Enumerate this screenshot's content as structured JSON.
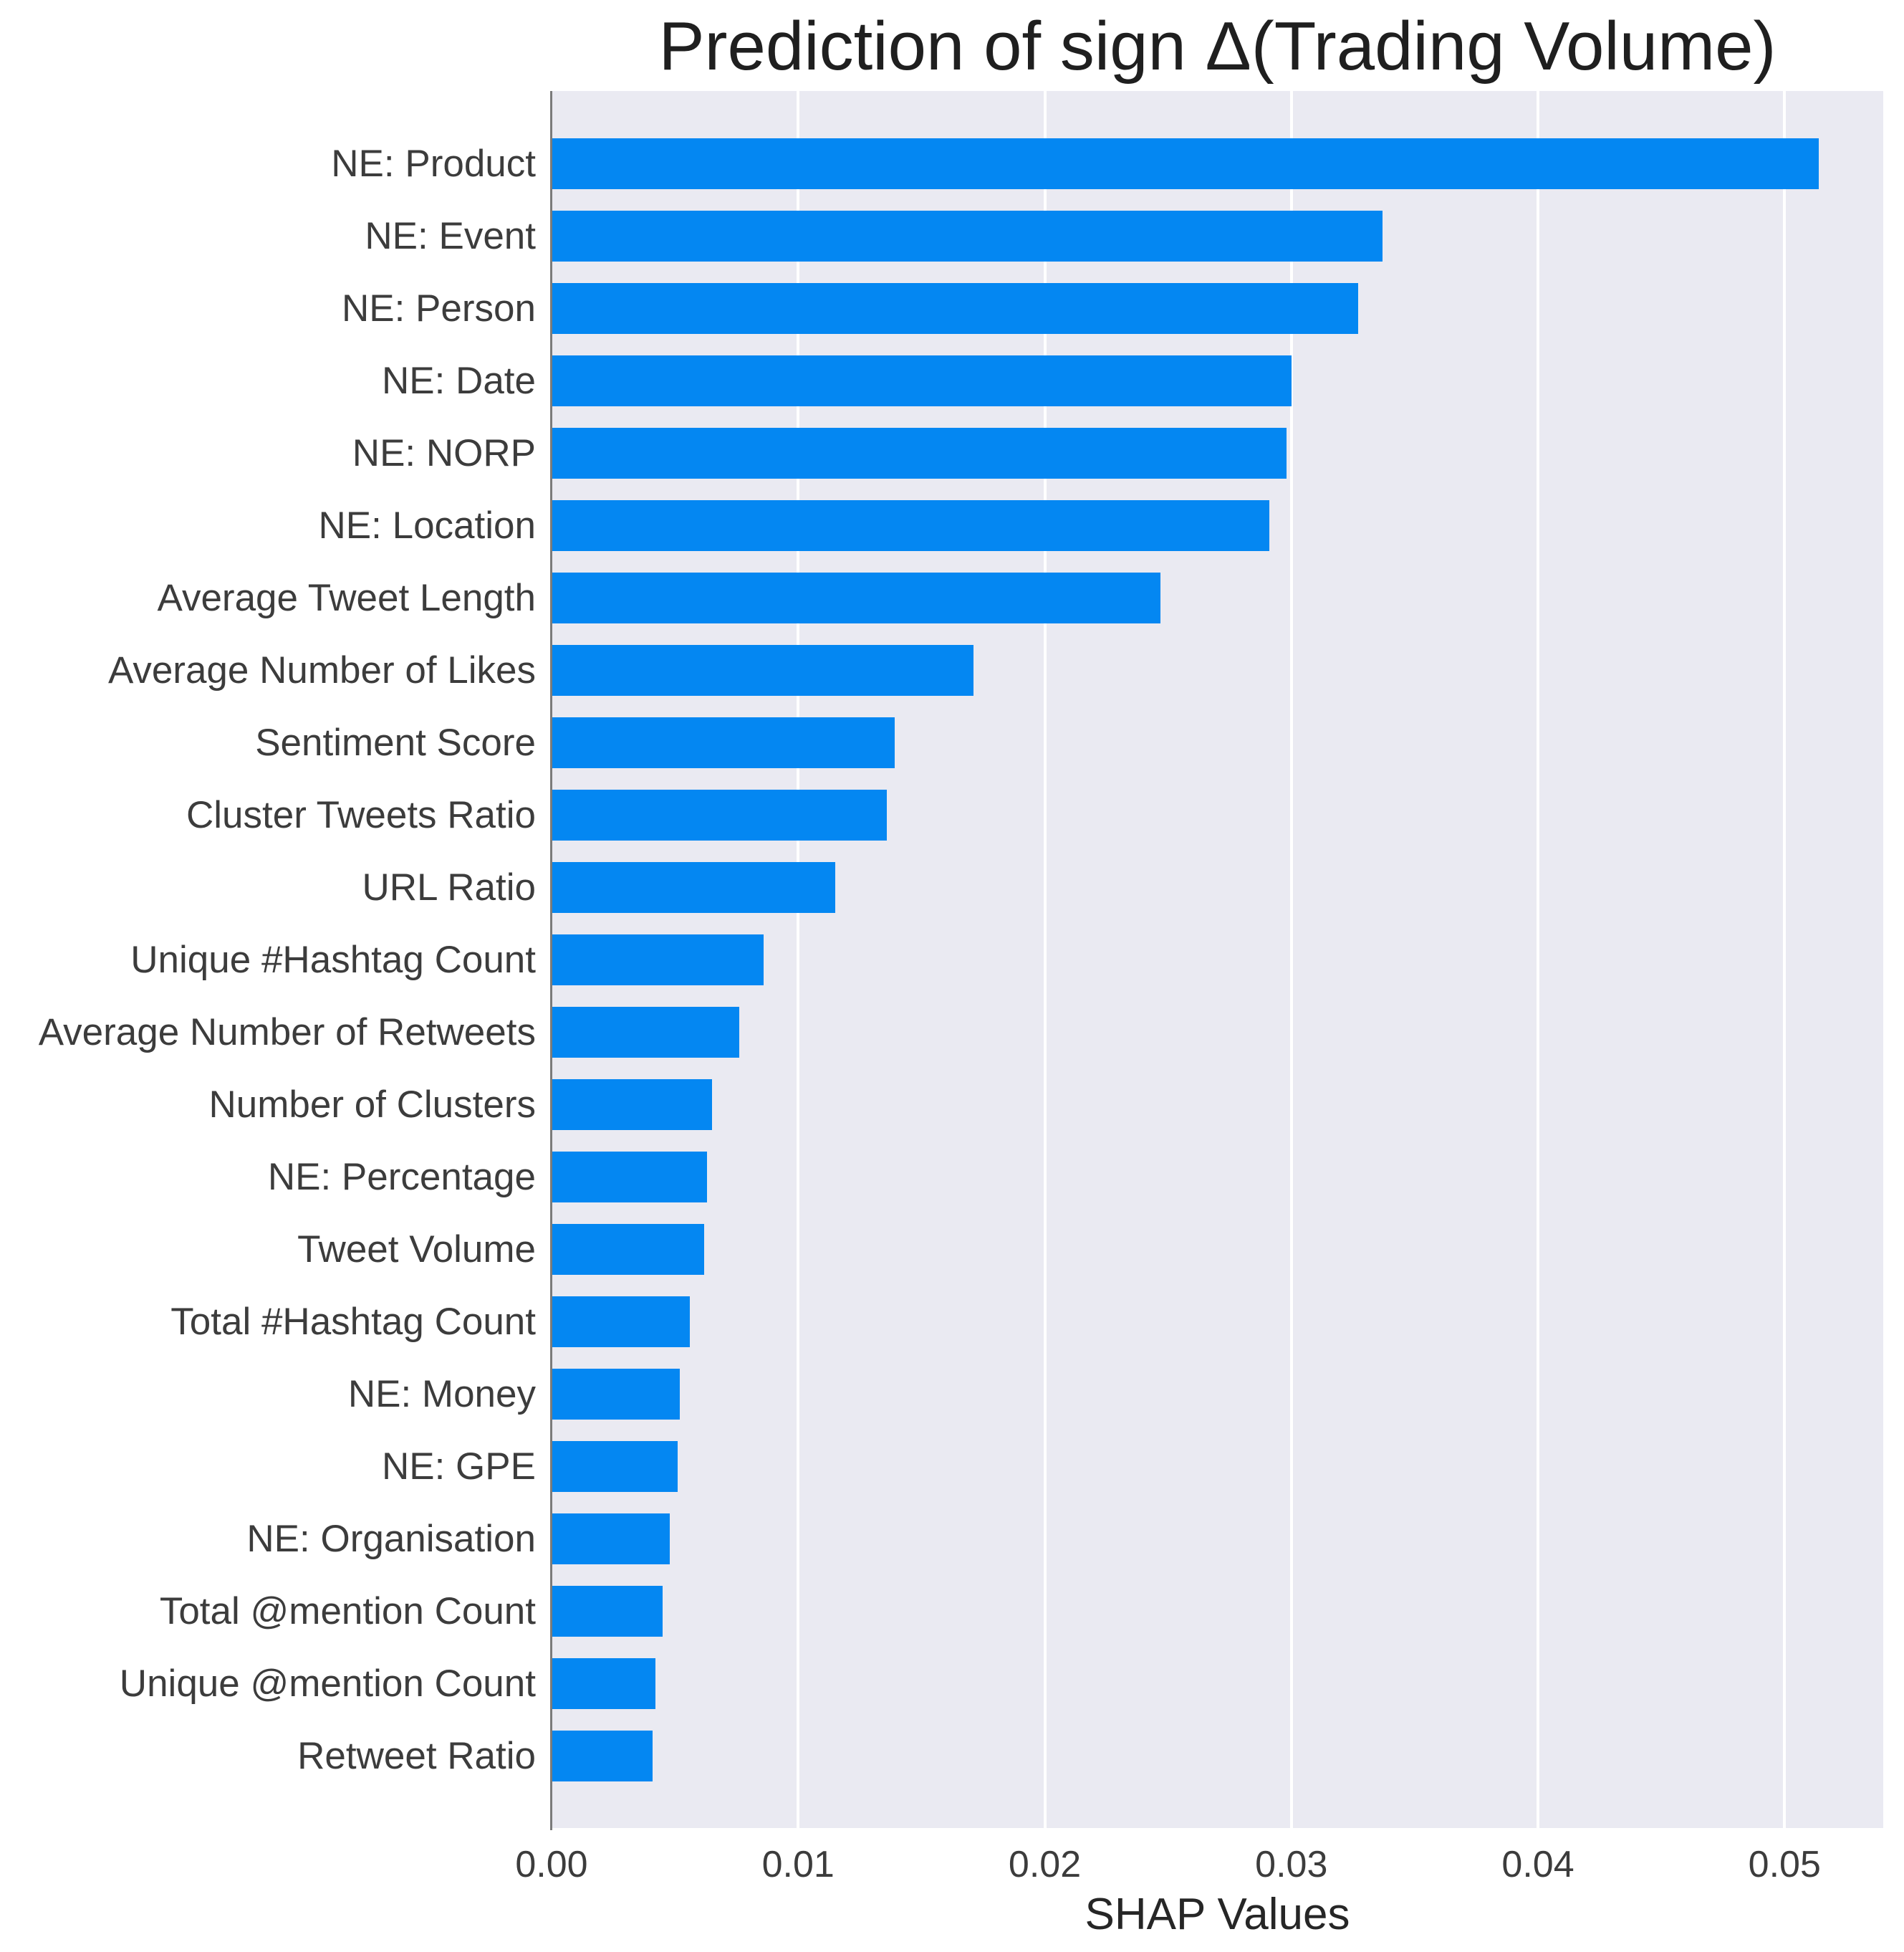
{
  "chart_data": {
    "type": "bar",
    "orientation": "horizontal",
    "title": "Prediction of sign Δ(Trading Volume)",
    "xlabel": "SHAP Values",
    "ylabel": "",
    "xlim": [
      0,
      0.054
    ],
    "xticks": [
      "0.00",
      "0.01",
      "0.02",
      "0.03",
      "0.04",
      "0.05"
    ],
    "xtick_values": [
      0,
      0.01,
      0.02,
      0.03,
      0.04,
      0.05
    ],
    "grid": true,
    "legend": false,
    "categories": [
      "NE: Product",
      "NE: Event",
      "NE: Person",
      "NE: Date",
      "NE: NORP",
      "NE: Location",
      "Average Tweet Length",
      "Average Number of Likes",
      "Sentiment Score",
      "Cluster Tweets Ratio",
      "URL Ratio",
      "Unique #Hashtag Count",
      "Average Number of Retweets",
      "Number of Clusters",
      "NE: Percentage",
      "Tweet Volume",
      "Total #Hashtag Count",
      "NE: Money",
      "NE: GPE",
      "NE: Organisation",
      "Total @mention Count",
      "Unique @mention Count",
      "Retweet Ratio"
    ],
    "values": [
      0.0514,
      0.0337,
      0.0327,
      0.03,
      0.0298,
      0.0291,
      0.0247,
      0.0171,
      0.0139,
      0.0136,
      0.0115,
      0.0086,
      0.0076,
      0.0065,
      0.0063,
      0.0062,
      0.0056,
      0.0052,
      0.0051,
      0.0048,
      0.0045,
      0.0042,
      0.0041
    ],
    "colors": {
      "bar": "#0487f2",
      "plot_background": "#eaeaf2",
      "gridline": "#ffffff",
      "spine": "#7b7b7b",
      "title_text": "#1f1f1f",
      "tick_text": "#3c3c3c"
    }
  }
}
